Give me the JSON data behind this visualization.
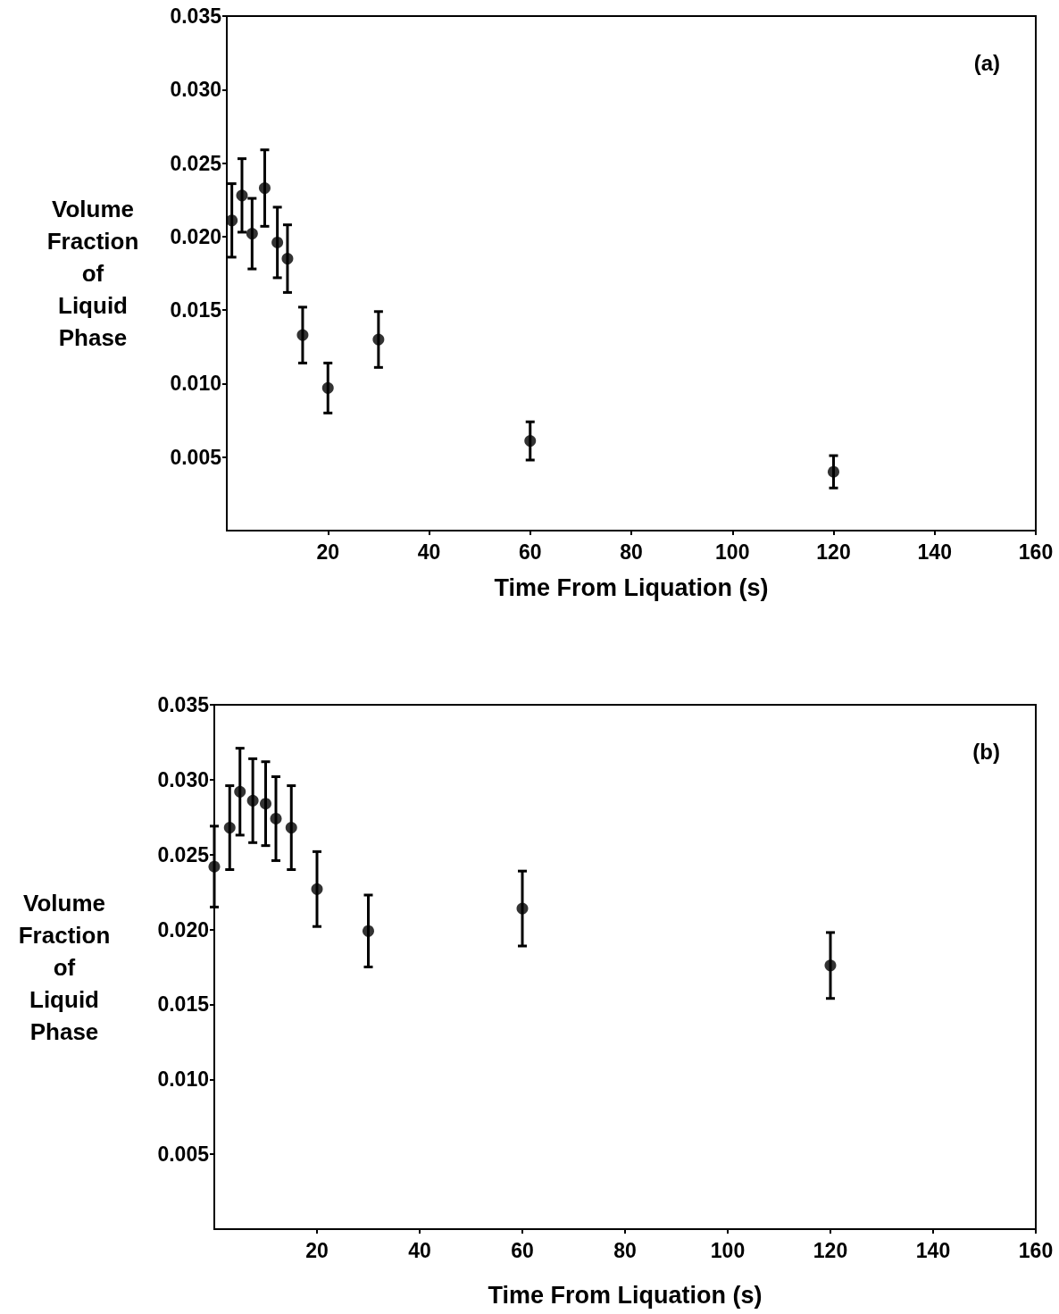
{
  "chart_data": [
    {
      "type": "scatter",
      "xlabel": "Time From Liquation (s)",
      "ylabel": "Volume Fraction of Liquid Phase",
      "annotations": [
        "(a)"
      ],
      "x": [
        1,
        3,
        5,
        7.5,
        10,
        12,
        15,
        20,
        30,
        60,
        120
      ],
      "series": [
        {
          "color": "#000000",
          "values": [
            0.0211,
            0.0228,
            0.0202,
            0.0233,
            0.0196,
            0.0185,
            0.0133,
            0.0097,
            0.013,
            0.0061,
            0.004
          ],
          "errors": [
            0.0025,
            0.0025,
            0.0024,
            0.0026,
            0.0024,
            0.0023,
            0.0019,
            0.0017,
            0.0019,
            0.0013,
            0.0011
          ]
        }
      ],
      "xlim": [
        0,
        160
      ],
      "xticks": [
        20,
        40,
        60,
        80,
        100,
        120,
        140,
        160
      ],
      "ylim": [
        0,
        0.035
      ],
      "yticks": [
        0.005,
        {
          "value": 0.01,
          "label": "0.010"
        },
        0.015,
        {
          "value": 0.02,
          "label": "0.020"
        },
        0.025,
        {
          "value": 0.03,
          "label": "0.030"
        },
        0.035
      ],
      "marker": "circle",
      "grid": false
    },
    {
      "type": "scatter",
      "xlabel": "Time From Liquation (s)",
      "ylabel": "Volume Fraction of Liquid Phase",
      "annotations": [
        "(b)"
      ],
      "x": [
        0,
        3,
        5,
        7.5,
        10,
        12,
        15,
        20,
        30,
        60,
        120
      ],
      "series": [
        {
          "color": "#000000",
          "values": [
            0.0242,
            0.0268,
            0.0292,
            0.0286,
            0.0284,
            0.0274,
            0.0268,
            0.0227,
            0.0199,
            0.0214,
            0.0176
          ],
          "errors": [
            0.0027,
            0.0028,
            0.0029,
            0.0028,
            0.0028,
            0.0028,
            0.0028,
            0.0025,
            0.0024,
            0.0025,
            0.0022
          ]
        }
      ],
      "xlim": [
        0,
        160
      ],
      "xticks": [
        20,
        40,
        60,
        80,
        100,
        120,
        140,
        160
      ],
      "ylim": [
        0,
        0.035
      ],
      "yticks": [
        0.005,
        {
          "value": 0.01,
          "label": "0.010"
        },
        0.015,
        {
          "value": 0.02,
          "label": "0.020"
        },
        0.025,
        {
          "value": 0.03,
          "label": "0.030"
        },
        0.035
      ],
      "marker": "circle",
      "grid": false
    }
  ]
}
